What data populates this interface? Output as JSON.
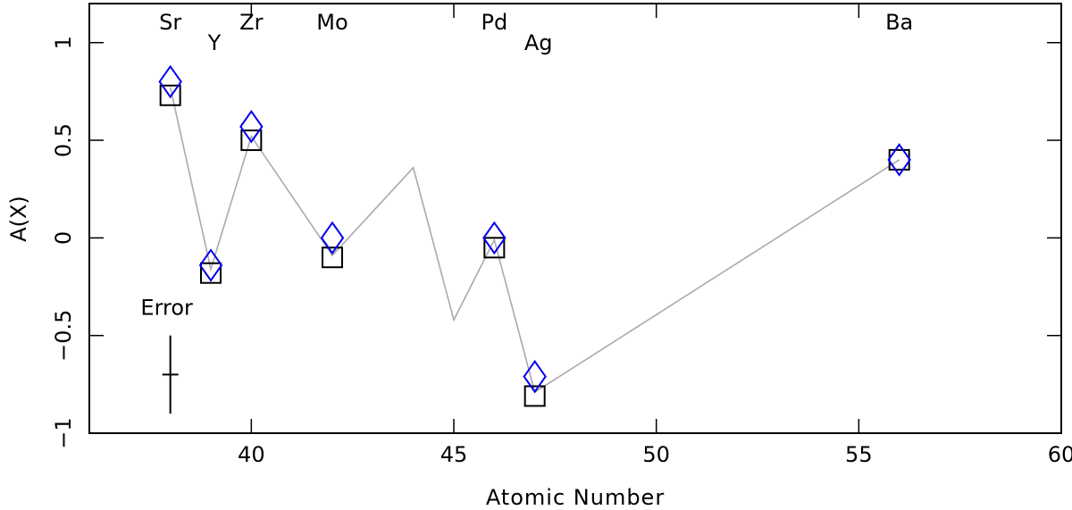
{
  "chart_data": {
    "type": "scatter",
    "xlabel": "Atomic Number",
    "ylabel": "A(X)",
    "xlim": [
      36,
      60
    ],
    "ylim": [
      -1,
      1.2
    ],
    "xticks": [
      40,
      45,
      50,
      55,
      60
    ],
    "yticks": [
      {
        "value": -1,
        "label": "−1"
      },
      {
        "value": -0.5,
        "label": "−0.5"
      },
      0,
      0.5,
      1
    ],
    "elements": [
      {
        "x": 38,
        "label": "Sr"
      },
      {
        "x": 39,
        "label": "Y"
      },
      {
        "x": 40,
        "label": "Zr"
      },
      {
        "x": 42,
        "label": "Mo"
      },
      {
        "x": 46,
        "label": "Pd"
      },
      {
        "x": 47,
        "label": "Ag"
      },
      {
        "x": 56,
        "label": "Ba"
      }
    ],
    "error_bar": {
      "label": "Error",
      "x": 38,
      "value": -0.7,
      "error": 0.2
    },
    "series": [
      {
        "marker": "line",
        "color": "#aaaaaa",
        "x": [
          38,
          39,
          40,
          42,
          44,
          45,
          46,
          47,
          56
        ],
        "values": [
          0.77,
          -0.16,
          0.52,
          -0.09,
          0.36,
          -0.42,
          -0.01,
          -0.79,
          0.4
        ]
      },
      {
        "marker": "square",
        "color": "#000000",
        "x": [
          38,
          39,
          40,
          42,
          46,
          47,
          56
        ],
        "values": [
          0.73,
          -0.18,
          0.5,
          -0.1,
          -0.05,
          -0.81,
          0.4
        ]
      },
      {
        "marker": "diamond",
        "color": "#0000ee",
        "x": [
          38,
          39,
          40,
          42,
          46,
          47,
          56
        ],
        "values": [
          0.8,
          -0.14,
          0.57,
          0.0,
          0.0,
          -0.71,
          0.4
        ]
      }
    ]
  }
}
